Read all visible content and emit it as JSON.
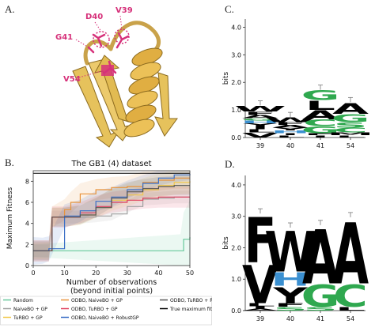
{
  "panels": {
    "a": "A.",
    "b": "B.",
    "c": "C.",
    "d": "D."
  },
  "structure": {
    "residues": [
      "D40",
      "V39",
      "G41",
      "V54"
    ],
    "colors": {
      "sheet": "#e6c25c",
      "helix": "#e0ae42",
      "outline": "#8c6b1f",
      "highlight": "#d6317a"
    }
  },
  "chart_data": [
    {
      "type": "line",
      "title": "The GB1 (4) dataset",
      "xlabel": "Number of observations",
      "xlabel2": "(beyond initial points)",
      "ylabel": "Maximum Fitness",
      "xlim": [
        0,
        50
      ],
      "ylim": [
        0,
        9
      ],
      "xticks": [
        0,
        10,
        20,
        30,
        40,
        50
      ],
      "yticks": [
        0,
        2,
        4,
        6,
        8
      ],
      "hline": {
        "name": "True maximum fitness",
        "y": 8.76,
        "color": "#000000"
      },
      "series": [
        {
          "name": "Random",
          "color": "#66c79a",
          "x": [
            0,
            47,
            48,
            50
          ],
          "values": [
            1.4,
            1.4,
            2.5,
            2.7
          ],
          "band": [
            0.6,
            3.5
          ]
        },
        {
          "name": "NaiveBO + GP",
          "color": "#a0a0a0",
          "x": [
            0,
            5,
            6,
            10,
            15,
            20,
            25,
            30,
            35,
            40,
            45,
            50
          ],
          "values": [
            1.4,
            1.4,
            4.6,
            4.6,
            4.6,
            4.7,
            4.9,
            5.6,
            6.3,
            6.4,
            6.5,
            6.5
          ],
          "band": [
            0.6,
            0.6
          ]
        },
        {
          "name": "TuRBO + GP",
          "color": "#f2c84b",
          "x": [
            0,
            5,
            6,
            10,
            15,
            20,
            25,
            30,
            35,
            40,
            45,
            50
          ],
          "values": [
            1.4,
            1.4,
            4.6,
            4.6,
            4.8,
            5.5,
            6.2,
            6.7,
            7.2,
            7.6,
            7.9,
            8.0
          ],
          "band": [
            0.8,
            1.2
          ]
        },
        {
          "name": "ODBO, NaiveBO + GP",
          "color": "#e8923a",
          "x": [
            0,
            5,
            6,
            10,
            12,
            15,
            20,
            25,
            30,
            35,
            40,
            45,
            50
          ],
          "values": [
            1.4,
            1.4,
            4.6,
            5.3,
            6.0,
            6.8,
            7.2,
            7.4,
            7.5,
            7.9,
            8.1,
            8.3,
            8.3
          ],
          "band": [
            1.0,
            1.0
          ]
        },
        {
          "name": "ODBO, TuRBO + GP",
          "color": "#e0405e",
          "x": [
            0,
            5,
            6,
            10,
            15,
            20,
            25,
            30,
            35,
            40,
            45,
            50
          ],
          "values": [
            1.4,
            1.4,
            4.6,
            4.6,
            5.0,
            5.6,
            6.0,
            6.2,
            6.4,
            6.5,
            6.5,
            6.5
          ],
          "band": [
            1.0,
            1.0
          ]
        },
        {
          "name": "ODBO, NaiveBO + RobustGP",
          "color": "#3b6fc6",
          "x": [
            0,
            3,
            5,
            10,
            15,
            20,
            25,
            30,
            35,
            40,
            45,
            50
          ],
          "values": [
            1.4,
            1.4,
            1.6,
            4.7,
            5.2,
            6.1,
            6.5,
            7.2,
            7.8,
            8.3,
            8.6,
            8.7
          ],
          "band": [
            1.3,
            0.6
          ]
        },
        {
          "name": "ODBO, TuRBO + RobustGP",
          "color": "#555555",
          "x": [
            0,
            5,
            6,
            10,
            15,
            20,
            25,
            30,
            35,
            40,
            45,
            50
          ],
          "values": [
            1.4,
            1.4,
            4.6,
            4.6,
            4.8,
            5.5,
            6.4,
            7.0,
            7.3,
            7.5,
            7.6,
            7.6
          ],
          "band": [
            0.9,
            0.9
          ]
        }
      ]
    },
    {
      "type": "sequence-logo",
      "ylabel": "bits",
      "ylim": [
        0,
        4.3
      ],
      "yticks": [
        "0.0",
        "1.0",
        "2.0",
        "3.0",
        "4.0"
      ],
      "positions": [
        "39",
        "40",
        "41",
        "54"
      ],
      "stacks": [
        [
          {
            "letter": "V",
            "bits": 0.18,
            "color": "#000000"
          },
          {
            "letter": "L",
            "bits": 0.12,
            "color": "#000000"
          },
          {
            "letter": "I",
            "bits": 0.12,
            "color": "#000000"
          },
          {
            "letter": "Y",
            "bits": 0.1,
            "color": "#000000"
          },
          {
            "letter": "H",
            "bits": 0.1,
            "color": "#3a8fd0"
          },
          {
            "letter": "G",
            "bits": 0.08,
            "color": "#2fa84f"
          },
          {
            "letter": "A",
            "bits": 0.12,
            "color": "#000000"
          },
          {
            "letter": "F",
            "bits": 0.12,
            "color": "#000000"
          },
          {
            "letter": "W",
            "bits": 0.22,
            "color": "#000000"
          }
        ],
        [
          {
            "letter": "L",
            "bits": 0.08,
            "color": "#000000"
          },
          {
            "letter": "I",
            "bits": 0.08,
            "color": "#000000"
          },
          {
            "letter": "H",
            "bits": 0.1,
            "color": "#3a8fd0"
          },
          {
            "letter": "Y",
            "bits": 0.1,
            "color": "#000000"
          },
          {
            "letter": "A",
            "bits": 0.1,
            "color": "#000000"
          },
          {
            "letter": "F",
            "bits": 0.1,
            "color": "#000000"
          },
          {
            "letter": "W",
            "bits": 0.18,
            "color": "#000000"
          }
        ],
        [
          {
            "letter": "I",
            "bits": 0.08,
            "color": "#000000"
          },
          {
            "letter": "F",
            "bits": 0.08,
            "color": "#000000"
          },
          {
            "letter": "G",
            "bits": 0.25,
            "color": "#2fa84f"
          },
          {
            "letter": "C",
            "bits": 0.25,
            "color": "#2fa84f"
          },
          {
            "letter": "A",
            "bits": 0.35,
            "color": "#000000"
          },
          {
            "letter": "L",
            "bits": 0.35,
            "color": "#000000"
          },
          {
            "letter": "G",
            "bits": 0.37,
            "color": "#2fa84f"
          }
        ],
        [
          {
            "letter": "L",
            "bits": 0.08,
            "color": "#000000"
          },
          {
            "letter": "M",
            "bits": 0.1,
            "color": "#000000"
          },
          {
            "letter": "C",
            "bits": 0.18,
            "color": "#2fa84f"
          },
          {
            "letter": "S",
            "bits": 0.2,
            "color": "#2fa84f"
          },
          {
            "letter": "G",
            "bits": 0.3,
            "color": "#2fa84f"
          },
          {
            "letter": "A",
            "bits": 0.42,
            "color": "#000000"
          }
        ]
      ]
    },
    {
      "type": "sequence-logo",
      "ylabel": "bits",
      "ylim": [
        0,
        4.3
      ],
      "yticks": [
        "0.0",
        "1.0",
        "2.0",
        "3.0",
        "4.0"
      ],
      "positions": [
        "39",
        "40",
        "41",
        "54"
      ],
      "stacks": [
        [
          {
            "letter": "A",
            "bits": 0.06,
            "color": "#000000"
          },
          {
            "letter": "I",
            "bits": 0.08,
            "color": "#000000"
          },
          {
            "letter": "L",
            "bits": 0.1,
            "color": "#000000"
          },
          {
            "letter": "V",
            "bits": 1.3,
            "color": "#000000"
          },
          {
            "letter": "F",
            "bits": 1.55,
            "color": "#000000"
          }
        ],
        [
          {
            "letter": "S",
            "bits": 0.12,
            "color": "#2fa84f"
          },
          {
            "letter": "F",
            "bits": 0.12,
            "color": "#000000"
          },
          {
            "letter": "Y",
            "bits": 0.55,
            "color": "#000000"
          },
          {
            "letter": "H",
            "bits": 0.45,
            "color": "#3a8fd0"
          },
          {
            "letter": "W",
            "bits": 1.4,
            "color": "#000000"
          }
        ],
        [
          {
            "letter": "S",
            "bits": 0.12,
            "color": "#2fa84f"
          },
          {
            "letter": "G",
            "bits": 0.75,
            "color": "#2fa84f"
          },
          {
            "letter": "A",
            "bits": 1.85,
            "color": "#000000"
          }
        ],
        [
          {
            "letter": "L",
            "bits": 0.12,
            "color": "#000000"
          },
          {
            "letter": "C",
            "bits": 0.75,
            "color": "#2fa84f"
          },
          {
            "letter": "A",
            "bits": 2.1,
            "color": "#000000"
          }
        ]
      ]
    }
  ]
}
